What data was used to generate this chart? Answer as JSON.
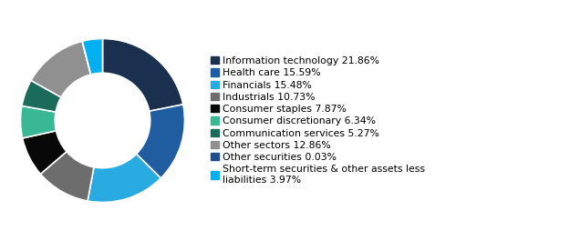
{
  "labels": [
    "Information technology 21.86%",
    "Health care 15.59%",
    "Financials 15.48%",
    "Industrials 10.73%",
    "Consumer staples 7.87%",
    "Consumer discretionary 6.34%",
    "Communication services 5.27%",
    "Other sectors 12.86%",
    "Other securities 0.03%",
    "Short-term securities & other assets less\nliabilities 3.97%"
  ],
  "values": [
    21.86,
    15.59,
    15.48,
    10.73,
    7.87,
    6.34,
    5.27,
    12.86,
    0.03,
    3.97
  ],
  "colors": [
    "#1b2f4e",
    "#1f5ca0",
    "#29abe2",
    "#6d6d6d",
    "#080808",
    "#3ab795",
    "#1a6b5a",
    "#909090",
    "#1e4f8c",
    "#00b0f0"
  ],
  "background_color": "#ffffff",
  "wedge_edge_color": "#ffffff",
  "wedge_linewidth": 1.2,
  "donut_width": 0.42,
  "legend_fontsize": 7.8,
  "startangle": 90
}
